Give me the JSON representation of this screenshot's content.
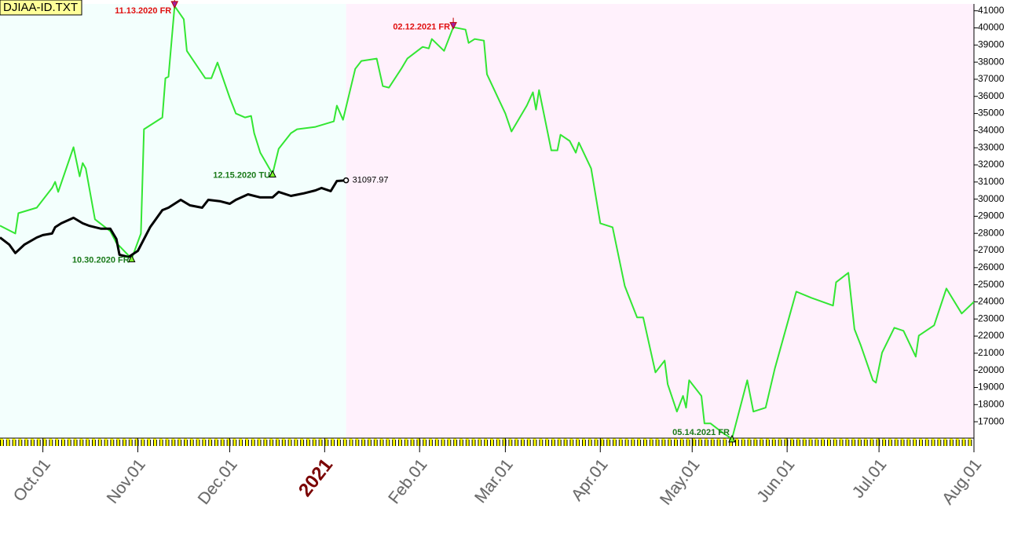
{
  "chart_data": {
    "type": "line",
    "title": "DJIAA-ID.TXT",
    "xlim": [
      "2020-09-17",
      "2021-08-01"
    ],
    "xticks": [
      {
        "value": "2020-10-01",
        "label": "Oct.01"
      },
      {
        "value": "2020-11-01",
        "label": "Nov.01"
      },
      {
        "value": "2020-12-01",
        "label": "Dec.01"
      },
      {
        "value": "2021-01-01",
        "label": "2021"
      },
      {
        "value": "2021-02-01",
        "label": "Feb.01"
      },
      {
        "value": "2021-03-01",
        "label": "Mar.01"
      },
      {
        "value": "2021-04-01",
        "label": "Apr.01"
      },
      {
        "value": "2021-05-01",
        "label": "May.01"
      },
      {
        "value": "2021-06-01",
        "label": "Jun.01"
      },
      {
        "value": "2021-07-01",
        "label": "Jul.01"
      },
      {
        "value": "2021-08-01",
        "label": "Aug.01"
      }
    ],
    "ylim": [
      15950,
      41400
    ],
    "yticks": [
      17000,
      18000,
      19000,
      20000,
      21000,
      22000,
      23000,
      24000,
      25000,
      26000,
      27000,
      28000,
      29000,
      30000,
      31000,
      32000,
      33000,
      34000,
      35000,
      36000,
      37000,
      38000,
      39000,
      40000,
      41000
    ],
    "regions": [
      {
        "from": "2020-09-17",
        "to": "2021-01-08",
        "color": "#f3fffd"
      },
      {
        "from": "2021-01-08",
        "to": "2021-08-01",
        "color": "#fff1fc"
      }
    ],
    "series": [
      {
        "color": "#33e633",
        "x": [
          "2020-09-17",
          "2020-09-22",
          "2020-09-23",
          "2020-09-29",
          "2020-10-04",
          "2020-10-05",
          "2020-10-06",
          "2020-10-11",
          "2020-10-13",
          "2020-10-14",
          "2020-10-15",
          "2020-10-18",
          "2020-10-23",
          "2020-10-25",
          "2020-10-30",
          "2020-11-02",
          "2020-11-03",
          "2020-11-09",
          "2020-11-10",
          "2020-11-11",
          "2020-11-13",
          "2020-11-16",
          "2020-11-17",
          "2020-11-23",
          "2020-11-25",
          "2020-11-27",
          "2020-12-01",
          "2020-12-03",
          "2020-12-06",
          "2020-12-08",
          "2020-12-09",
          "2020-12-11",
          "2020-12-15",
          "2020-12-17",
          "2020-12-21",
          "2020-12-23",
          "2020-12-29",
          "2021-01-04",
          "2021-01-05",
          "2021-01-07",
          "2021-01-11",
          "2021-01-13",
          "2021-01-18",
          "2021-01-20",
          "2021-01-22",
          "2021-01-26",
          "2021-01-28",
          "2021-02-02",
          "2021-02-04",
          "2021-02-05",
          "2021-02-09",
          "2021-02-12",
          "2021-02-16",
          "2021-02-17",
          "2021-02-19",
          "2021-02-22",
          "2021-02-23",
          "2021-03-01",
          "2021-03-03",
          "2021-03-08",
          "2021-03-10",
          "2021-03-11",
          "2021-03-12",
          "2021-03-16",
          "2021-03-18",
          "2021-03-19",
          "2021-03-22",
          "2021-03-24",
          "2021-03-25",
          "2021-03-29",
          "2021-04-01",
          "2021-04-05",
          "2021-04-09",
          "2021-04-13",
          "2021-04-15",
          "2021-04-19",
          "2021-04-22",
          "2021-04-23",
          "2021-04-26",
          "2021-04-28",
          "2021-04-29",
          "2021-04-30",
          "2021-05-04",
          "2021-05-05",
          "2021-05-07",
          "2021-05-11",
          "2021-05-14",
          "2021-05-19",
          "2021-05-21",
          "2021-05-25",
          "2021-05-28",
          "2021-06-02",
          "2021-06-04",
          "2021-06-09",
          "2021-06-16",
          "2021-06-17",
          "2021-06-21",
          "2021-06-23",
          "2021-06-25",
          "2021-06-29",
          "2021-06-30",
          "2021-07-02",
          "2021-07-06",
          "2021-07-09",
          "2021-07-13",
          "2021-07-14",
          "2021-07-19",
          "2021-07-23",
          "2021-07-28",
          "2021-08-01"
        ],
        "values": [
          28450,
          27990,
          29180,
          29500,
          30650,
          31010,
          30420,
          33030,
          31330,
          32110,
          31790,
          28820,
          28130,
          27440,
          26520,
          27990,
          34080,
          34770,
          37060,
          37150,
          41270,
          40500,
          38660,
          37060,
          37060,
          37980,
          35920,
          35000,
          34770,
          34860,
          33850,
          32710,
          31470,
          32940,
          33850,
          34080,
          34220,
          34540,
          35460,
          34630,
          37610,
          38070,
          38210,
          36600,
          36510,
          37610,
          38210,
          38890,
          38800,
          39350,
          38660,
          40040,
          39900,
          39120,
          39350,
          39260,
          37290,
          35000,
          33950,
          35460,
          36240,
          35230,
          36370,
          32850,
          32850,
          33760,
          33400,
          32710,
          33300,
          31790,
          28590,
          28360,
          24920,
          23090,
          23090,
          19880,
          20570,
          19190,
          17590,
          18510,
          17820,
          19420,
          18510,
          16900,
          16900,
          16350,
          16000,
          19420,
          17590,
          17820,
          20110,
          23320,
          24600,
          24230,
          23780,
          25150,
          25700,
          22400,
          21490,
          19420,
          19280,
          21030,
          22490,
          22310,
          20800,
          22030,
          22630,
          24780,
          23320,
          24000
        ]
      },
      {
        "color": "#000000",
        "x": [
          "2020-09-17",
          "2020-09-20",
          "2020-09-22",
          "2020-09-25",
          "2020-09-29",
          "2020-10-01",
          "2020-10-04",
          "2020-10-05",
          "2020-10-07",
          "2020-10-11",
          "2020-10-14",
          "2020-10-16",
          "2020-10-20",
          "2020-10-23",
          "2020-10-25",
          "2020-10-26",
          "2020-10-29",
          "2020-11-01",
          "2020-11-05",
          "2020-11-09",
          "2020-11-11",
          "2020-11-15",
          "2020-11-18",
          "2020-11-22",
          "2020-11-24",
          "2020-11-28",
          "2020-12-01",
          "2020-12-03",
          "2020-12-07",
          "2020-12-11",
          "2020-12-15",
          "2020-12-17",
          "2020-12-21",
          "2020-12-25",
          "2020-12-29",
          "2020-12-31",
          "2021-01-03",
          "2021-01-05",
          "2021-01-08"
        ],
        "values": [
          27760,
          27350,
          26850,
          27350,
          27760,
          27900,
          27990,
          28360,
          28590,
          28910,
          28590,
          28450,
          28270,
          28270,
          27670,
          26750,
          26620,
          26980,
          28360,
          29360,
          29500,
          29960,
          29640,
          29500,
          29960,
          29870,
          29730,
          29960,
          30280,
          30100,
          30100,
          30420,
          30190,
          30330,
          30510,
          30650,
          30470,
          31060,
          31097.97
        ]
      }
    ],
    "annotations": [
      {
        "text": "11.13.2020 FR",
        "x": "2020-11-13",
        "y": 41270,
        "kind": "peak",
        "color": "#e01010"
      },
      {
        "text": "02.12.2021 FR",
        "x": "2021-02-12",
        "y": 40040,
        "kind": "peak",
        "color": "#e01010"
      },
      {
        "text": "10.30.2020 FR",
        "x": "2020-10-30",
        "y": 26520,
        "kind": "trough",
        "color": "#1a7a1a"
      },
      {
        "text": "12.15.2020 TU",
        "x": "2020-12-15",
        "y": 31470,
        "kind": "trough",
        "color": "#1a7a1a"
      },
      {
        "text": "05.14.2021 FR",
        "x": "2021-05-14",
        "y": 16000,
        "kind": "trough",
        "color": "#1a7a1a"
      }
    ]
  }
}
